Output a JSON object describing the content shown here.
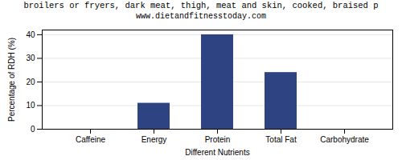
{
  "chart_data": {
    "type": "bar",
    "title": "broilers or fryers, dark meat, thigh, meat and skin, cooked, braised p",
    "subtitle": "www.dietandfitnesstoday.com",
    "xlabel": "Different Nutrients",
    "ylabel": "Percentage of RDH (%)",
    "categories": [
      "Caffeine",
      "Energy",
      "Protein",
      "Total Fat",
      "Carbohydrate"
    ],
    "values": [
      0,
      11,
      40,
      24,
      0
    ],
    "color": "#2e4482",
    "ylim": [
      0,
      42
    ],
    "yticks": [
      0,
      10,
      20,
      30,
      40
    ],
    "grid": true
  }
}
